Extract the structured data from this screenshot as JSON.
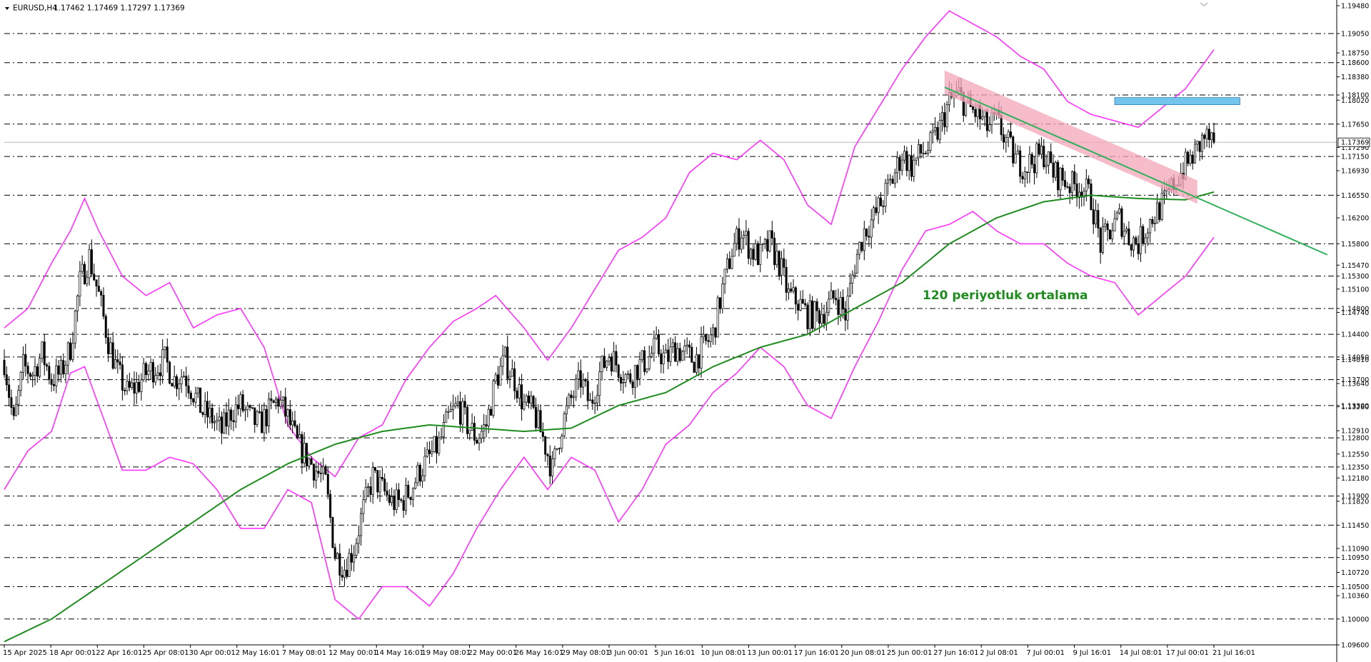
{
  "colors": {
    "background": "#ffffff",
    "candle": "#000000",
    "bollinger": "#ff33ff",
    "ma120": "#1f8c1f",
    "trendline": "#2fb05a",
    "trend_band": "#f4a5b8",
    "support_box": "#74c5ee",
    "grid_dash": "#000000",
    "current_price_line": "#b8b8b8"
  },
  "icons": {
    "symbol_menu": "triangle-down-icon",
    "top_marker": "chevron-down-icon"
  },
  "header": {
    "symbol": "EURUSD,H4",
    "ohlc": "1.17462 1.17469 1.17297 1.17369"
  },
  "chart_data": {
    "type": "candlestick",
    "symbol": "EURUSD",
    "timeframe": "H4",
    "title": "EURUSD,H4 1.17462 1.17469 1.17297 1.17369",
    "ylim": [
      1.096,
      1.1948
    ],
    "grid": "dashed horizontal levels",
    "price_scale_ticks": [
      "1.19480",
      "1.18750",
      "1.18380",
      "1.18020",
      "1.17290",
      "1.16930",
      "1.16200",
      "1.15470",
      "1.15100",
      "1.14740",
      "1.14010",
      "1.13640",
      "1.13280",
      "1.12910",
      "1.12550",
      "1.12180",
      "1.11820",
      "1.11090",
      "1.10720",
      "1.10360"
    ],
    "levels": [
      "1.19050",
      "1.18600",
      "1.18100",
      "1.17650",
      "1.17150",
      "1.16550",
      "1.15800",
      "1.15300",
      "1.14800",
      "1.14400",
      "1.14050",
      "1.13700",
      "1.13300",
      "1.12800",
      "1.12350",
      "1.11900",
      "1.11450",
      "1.10950",
      "1.10500",
      "1.10000",
      "1.09600"
    ],
    "current_price": "1.17369",
    "x_labels": [
      "15 Apr 2025",
      "18 Apr 00:01",
      "22 Apr 16:01",
      "25 Apr 08:01",
      "30 Apr 00:01",
      "2 May 16:01",
      "7 May 08:01",
      "12 May 00:01",
      "14 May 16:01",
      "19 May 08:01",
      "22 May 00:01",
      "26 May 16:01",
      "29 May 08:01",
      "3 Jun 00:01",
      "5 Jun 16:01",
      "10 Jun 08:01",
      "13 Jun 00:01",
      "17 Jun 16:01",
      "20 Jun 08:01",
      "25 Jun 00:01",
      "27 Jun 16:01",
      "2 Jul 08:01",
      "7 Jul 00:01",
      "9 Jul 16:01",
      "14 Jul 08:01",
      "17 Jul 00:01",
      "21 Jul 16:01"
    ],
    "price_path": [
      [
        0,
        1.14
      ],
      [
        4,
        1.13
      ],
      [
        8,
        1.139
      ],
      [
        12,
        1.138
      ],
      [
        16,
        1.141
      ],
      [
        20,
        1.137
      ],
      [
        24,
        1.138
      ],
      [
        28,
        1.142
      ],
      [
        32,
        1.152
      ],
      [
        36,
        1.156
      ],
      [
        40,
        1.15
      ],
      [
        44,
        1.143
      ],
      [
        48,
        1.138
      ],
      [
        52,
        1.135
      ],
      [
        56,
        1.136
      ],
      [
        60,
        1.138
      ],
      [
        64,
        1.139
      ],
      [
        68,
        1.14
      ],
      [
        72,
        1.137
      ],
      [
        76,
        1.138
      ],
      [
        80,
        1.135
      ],
      [
        84,
        1.132
      ],
      [
        88,
        1.131
      ],
      [
        92,
        1.129
      ],
      [
        96,
        1.132
      ],
      [
        100,
        1.133
      ],
      [
        104,
        1.131
      ],
      [
        108,
        1.13
      ],
      [
        112,
        1.132
      ],
      [
        116,
        1.134
      ],
      [
        120,
        1.131
      ],
      [
        124,
        1.127
      ],
      [
        128,
        1.125
      ],
      [
        132,
        1.123
      ],
      [
        136,
        1.121
      ],
      [
        140,
        1.11
      ],
      [
        144,
        1.108
      ],
      [
        148,
        1.111
      ],
      [
        152,
        1.117
      ],
      [
        156,
        1.122
      ],
      [
        160,
        1.12
      ],
      [
        164,
        1.118
      ],
      [
        168,
        1.118
      ],
      [
        172,
        1.12
      ],
      [
        176,
        1.123
      ],
      [
        180,
        1.125
      ],
      [
        184,
        1.127
      ],
      [
        188,
        1.131
      ],
      [
        192,
        1.133
      ],
      [
        196,
        1.13
      ],
      [
        200,
        1.128
      ],
      [
        204,
        1.13
      ],
      [
        208,
        1.137
      ],
      [
        212,
        1.14
      ],
      [
        216,
        1.137
      ],
      [
        220,
        1.133
      ],
      [
        224,
        1.132
      ],
      [
        228,
        1.128
      ],
      [
        232,
        1.123
      ],
      [
        236,
        1.13
      ],
      [
        240,
        1.134
      ],
      [
        244,
        1.137
      ],
      [
        248,
        1.133
      ],
      [
        252,
        1.138
      ],
      [
        256,
        1.141
      ],
      [
        260,
        1.139
      ],
      [
        264,
        1.137
      ],
      [
        268,
        1.139
      ],
      [
        272,
        1.14
      ],
      [
        276,
        1.142
      ],
      [
        280,
        1.14
      ],
      [
        284,
        1.142
      ],
      [
        288,
        1.141
      ],
      [
        292,
        1.14
      ],
      [
        296,
        1.142
      ],
      [
        300,
        1.144
      ],
      [
        304,
        1.151
      ],
      [
        308,
        1.157
      ],
      [
        312,
        1.16
      ],
      [
        316,
        1.157
      ],
      [
        320,
        1.156
      ],
      [
        324,
        1.158
      ],
      [
        328,
        1.155
      ],
      [
        332,
        1.15
      ],
      [
        336,
        1.149
      ],
      [
        340,
        1.147
      ],
      [
        344,
        1.147
      ],
      [
        348,
        1.148
      ],
      [
        352,
        1.15
      ],
      [
        356,
        1.147
      ],
      [
        360,
        1.155
      ],
      [
        364,
        1.16
      ],
      [
        368,
        1.162
      ],
      [
        372,
        1.165
      ],
      [
        376,
        1.168
      ],
      [
        380,
        1.172
      ],
      [
        384,
        1.17
      ],
      [
        388,
        1.172
      ],
      [
        392,
        1.173
      ],
      [
        396,
        1.176
      ],
      [
        400,
        1.18
      ],
      [
        404,
        1.181
      ],
      [
        408,
        1.179
      ],
      [
        412,
        1.178
      ],
      [
        416,
        1.176
      ],
      [
        420,
        1.177
      ],
      [
        424,
        1.174
      ],
      [
        428,
        1.171
      ],
      [
        432,
        1.17
      ],
      [
        436,
        1.171
      ],
      [
        440,
        1.172
      ],
      [
        444,
        1.169
      ],
      [
        448,
        1.168
      ],
      [
        452,
        1.167
      ],
      [
        456,
        1.167
      ],
      [
        460,
        1.165
      ],
      [
        464,
        1.158
      ],
      [
        468,
        1.16
      ],
      [
        472,
        1.162
      ],
      [
        476,
        1.159
      ],
      [
        480,
        1.158
      ],
      [
        484,
        1.161
      ],
      [
        488,
        1.163
      ],
      [
        492,
        1.165
      ],
      [
        496,
        1.168
      ],
      [
        500,
        1.17
      ],
      [
        504,
        1.172
      ],
      [
        508,
        1.1745
      ],
      [
        512,
        1.1737
      ]
    ],
    "moving_average_120": [
      [
        0,
        1.0965
      ],
      [
        20,
        1.1
      ],
      [
        40,
        1.105
      ],
      [
        60,
        1.11
      ],
      [
        80,
        1.115
      ],
      [
        100,
        1.12
      ],
      [
        120,
        1.124
      ],
      [
        140,
        1.127
      ],
      [
        160,
        1.129
      ],
      [
        180,
        1.13
      ],
      [
        200,
        1.1295
      ],
      [
        220,
        1.129
      ],
      [
        240,
        1.1295
      ],
      [
        260,
        1.133
      ],
      [
        280,
        1.135
      ],
      [
        300,
        1.139
      ],
      [
        320,
        1.142
      ],
      [
        340,
        1.144
      ],
      [
        360,
        1.148
      ],
      [
        380,
        1.152
      ],
      [
        400,
        1.158
      ],
      [
        420,
        1.162
      ],
      [
        440,
        1.1645
      ],
      [
        460,
        1.1655
      ],
      [
        480,
        1.165
      ],
      [
        500,
        1.1648
      ],
      [
        512,
        1.166
      ]
    ],
    "bollinger_upper": [
      [
        0,
        1.145
      ],
      [
        10,
        1.148
      ],
      [
        20,
        1.155
      ],
      [
        28,
        1.16
      ],
      [
        34,
        1.165
      ],
      [
        40,
        1.16
      ],
      [
        50,
        1.153
      ],
      [
        60,
        1.15
      ],
      [
        70,
        1.152
      ],
      [
        80,
        1.145
      ],
      [
        90,
        1.147
      ],
      [
        100,
        1.148
      ],
      [
        110,
        1.142
      ],
      [
        120,
        1.13
      ],
      [
        130,
        1.125
      ],
      [
        140,
        1.122
      ],
      [
        150,
        1.128
      ],
      [
        160,
        1.13
      ],
      [
        170,
        1.137
      ],
      [
        180,
        1.142
      ],
      [
        190,
        1.146
      ],
      [
        200,
        1.148
      ],
      [
        208,
        1.15
      ],
      [
        220,
        1.145
      ],
      [
        230,
        1.14
      ],
      [
        240,
        1.145
      ],
      [
        250,
        1.151
      ],
      [
        260,
        1.157
      ],
      [
        270,
        1.159
      ],
      [
        280,
        1.162
      ],
      [
        290,
        1.169
      ],
      [
        300,
        1.172
      ],
      [
        310,
        1.171
      ],
      [
        320,
        1.174
      ],
      [
        330,
        1.171
      ],
      [
        340,
        1.164
      ],
      [
        350,
        1.161
      ],
      [
        360,
        1.173
      ],
      [
        370,
        1.179
      ],
      [
        380,
        1.185
      ],
      [
        390,
        1.19
      ],
      [
        400,
        1.194
      ],
      [
        410,
        1.192
      ],
      [
        420,
        1.19
      ],
      [
        430,
        1.187
      ],
      [
        440,
        1.185
      ],
      [
        450,
        1.18
      ],
      [
        460,
        1.178
      ],
      [
        470,
        1.177
      ],
      [
        480,
        1.176
      ],
      [
        490,
        1.179
      ],
      [
        500,
        1.182
      ],
      [
        512,
        1.188
      ]
    ],
    "bollinger_lower": [
      [
        0,
        1.12
      ],
      [
        10,
        1.126
      ],
      [
        20,
        1.129
      ],
      [
        28,
        1.138
      ],
      [
        34,
        1.139
      ],
      [
        40,
        1.133
      ],
      [
        50,
        1.123
      ],
      [
        60,
        1.123
      ],
      [
        70,
        1.125
      ],
      [
        80,
        1.124
      ],
      [
        90,
        1.12
      ],
      [
        100,
        1.114
      ],
      [
        110,
        1.114
      ],
      [
        120,
        1.12
      ],
      [
        130,
        1.118
      ],
      [
        140,
        1.103
      ],
      [
        150,
        1.1
      ],
      [
        160,
        1.105
      ],
      [
        170,
        1.105
      ],
      [
        180,
        1.102
      ],
      [
        190,
        1.107
      ],
      [
        200,
        1.114
      ],
      [
        210,
        1.12
      ],
      [
        220,
        1.125
      ],
      [
        230,
        1.12
      ],
      [
        240,
        1.125
      ],
      [
        250,
        1.123
      ],
      [
        260,
        1.115
      ],
      [
        270,
        1.12
      ],
      [
        280,
        1.127
      ],
      [
        290,
        1.13
      ],
      [
        300,
        1.135
      ],
      [
        310,
        1.138
      ],
      [
        320,
        1.142
      ],
      [
        330,
        1.139
      ],
      [
        340,
        1.133
      ],
      [
        350,
        1.131
      ],
      [
        360,
        1.139
      ],
      [
        370,
        1.146
      ],
      [
        380,
        1.154
      ],
      [
        390,
        1.16
      ],
      [
        400,
        1.161
      ],
      [
        410,
        1.163
      ],
      [
        420,
        1.16
      ],
      [
        430,
        1.158
      ],
      [
        440,
        1.158
      ],
      [
        450,
        1.155
      ],
      [
        460,
        1.153
      ],
      [
        470,
        1.152
      ],
      [
        480,
        1.147
      ],
      [
        490,
        1.15
      ],
      [
        500,
        1.153
      ],
      [
        512,
        1.159
      ]
    ],
    "trendline": {
      "from": [
        398,
        1.1822
      ],
      "to": [
        512,
        1.1652
      ],
      "extends_to": [
        560,
        1.1563
      ]
    },
    "trend_band": {
      "from": [
        398,
        1.183
      ],
      "to": [
        505,
        1.166
      ],
      "thickness": 0.0018
    },
    "support_zone": {
      "from_x": 470,
      "to_x": 523,
      "low": 1.1795,
      "high": 1.1806
    },
    "annotation": "120 periyotluk ortalama"
  }
}
